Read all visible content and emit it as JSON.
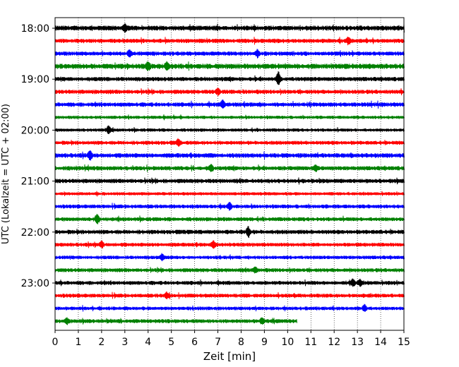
{
  "chart_data": {
    "type": "line",
    "title": "",
    "xlabel": "Zeit  [min]",
    "ylabel": "UTC (Lokalzeit = UTC + 02:00)",
    "xlim": [
      0,
      15
    ],
    "x_ticks": [
      "0",
      "1",
      "2",
      "3",
      "4",
      "5",
      "6",
      "7",
      "8",
      "9",
      "10",
      "11",
      "12",
      "13",
      "14",
      "15"
    ],
    "y_ticks": [
      {
        "label": "18:00",
        "trace_index": 0
      },
      {
        "label": "19:00",
        "trace_index": 4
      },
      {
        "label": "20:00",
        "trace_index": 8
      },
      {
        "label": "21:00",
        "trace_index": 12
      },
      {
        "label": "22:00",
        "trace_index": 16
      },
      {
        "label": "23:00",
        "trace_index": 20
      }
    ],
    "grid": "vertical dotted at each minute",
    "trace_interval_min": 15,
    "trace_colors": [
      "#000000",
      "#ff0000",
      "#0000ff",
      "#008000"
    ],
    "traces": [
      {
        "start": "18:00",
        "end_min": 15,
        "noise": 3.0,
        "events": [
          [
            3.0,
            5
          ]
        ]
      },
      {
        "start": "18:15",
        "end_min": 15,
        "noise": 2.6,
        "events": [
          [
            12.6,
            5
          ]
        ]
      },
      {
        "start": "18:30",
        "end_min": 15,
        "noise": 2.6,
        "events": [
          [
            3.2,
            5
          ],
          [
            8.7,
            5
          ]
        ]
      },
      {
        "start": "18:45",
        "end_min": 15,
        "noise": 3.2,
        "events": [
          [
            4.0,
            6
          ],
          [
            4.8,
            5
          ]
        ]
      },
      {
        "start": "19:00",
        "end_min": 15,
        "noise": 2.6,
        "events": [
          [
            9.6,
            10
          ]
        ]
      },
      {
        "start": "19:15",
        "end_min": 15,
        "noise": 2.6,
        "events": [
          [
            7.0,
            5
          ]
        ]
      },
      {
        "start": "19:30",
        "end_min": 15,
        "noise": 2.6,
        "events": [
          [
            7.2,
            6
          ]
        ]
      },
      {
        "start": "19:45",
        "end_min": 15,
        "noise": 2.0,
        "events": []
      },
      {
        "start": "20:00",
        "end_min": 15,
        "noise": 2.0,
        "events": [
          [
            2.3,
            6
          ]
        ]
      },
      {
        "start": "20:15",
        "end_min": 15,
        "noise": 2.4,
        "events": [
          [
            5.3,
            5
          ]
        ]
      },
      {
        "start": "20:30",
        "end_min": 15,
        "noise": 2.8,
        "events": [
          [
            1.5,
            7
          ]
        ]
      },
      {
        "start": "20:45",
        "end_min": 15,
        "noise": 2.6,
        "events": [
          [
            6.7,
            5
          ],
          [
            11.2,
            4
          ]
        ]
      },
      {
        "start": "21:00",
        "end_min": 15,
        "noise": 2.6,
        "events": []
      },
      {
        "start": "21:15",
        "end_min": 15,
        "noise": 2.0,
        "events": []
      },
      {
        "start": "21:30",
        "end_min": 15,
        "noise": 2.4,
        "events": [
          [
            7.5,
            6
          ]
        ]
      },
      {
        "start": "21:45",
        "end_min": 15,
        "noise": 2.4,
        "events": [
          [
            1.8,
            8
          ]
        ]
      },
      {
        "start": "22:00",
        "end_min": 15,
        "noise": 2.6,
        "events": [
          [
            8.3,
            7
          ]
        ]
      },
      {
        "start": "22:15",
        "end_min": 15,
        "noise": 2.4,
        "events": [
          [
            2.0,
            5
          ],
          [
            6.8,
            5
          ]
        ]
      },
      {
        "start": "22:30",
        "end_min": 15,
        "noise": 2.2,
        "events": [
          [
            4.6,
            5
          ]
        ]
      },
      {
        "start": "22:45",
        "end_min": 15,
        "noise": 2.4,
        "events": [
          [
            8.6,
            5
          ]
        ]
      },
      {
        "start": "23:00",
        "end_min": 15,
        "noise": 2.4,
        "events": [
          [
            12.8,
            6
          ],
          [
            13.1,
            5
          ]
        ]
      },
      {
        "start": "23:15",
        "end_min": 15,
        "noise": 2.4,
        "events": [
          [
            4.8,
            4
          ]
        ]
      },
      {
        "start": "23:30",
        "end_min": 15,
        "noise": 2.2,
        "events": [
          [
            13.3,
            6
          ]
        ]
      },
      {
        "start": "23:45",
        "end_min": 10.4,
        "noise": 2.4,
        "events": [
          [
            0.5,
            4
          ],
          [
            8.9,
            5
          ]
        ]
      }
    ]
  }
}
